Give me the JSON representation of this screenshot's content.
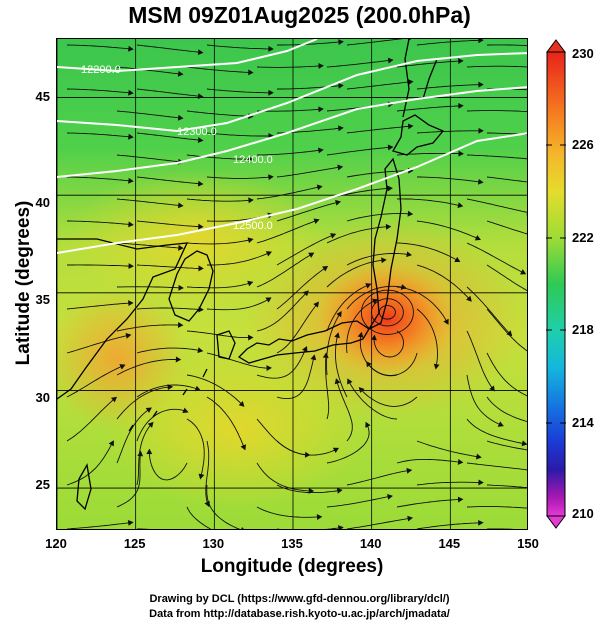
{
  "title": "MSM 09Z01Aug2025 (200.0hPa)",
  "xlabel": "Longitude (degrees)",
  "ylabel": "Latitude  (degrees)",
  "x_ticks": [
    "120",
    "125",
    "130",
    "135",
    "140",
    "145",
    "150"
  ],
  "y_ticks": [
    "45",
    "40",
    "35",
    "30",
    "25"
  ],
  "colorbar": {
    "ticks": [
      "230",
      "226",
      "222",
      "218",
      "214",
      "210"
    ],
    "range": [
      210,
      230
    ]
  },
  "contour_labels": [
    "12200.0",
    "12300.0",
    "12400.0",
    "12500.0"
  ],
  "footer": {
    "line1": "Drawing by DCL (https://www.gfd-dennou.org/library/dcl/)",
    "line2": "Data from http://database.rish.kyoto-u.ac.jp/arch/jmadata/"
  },
  "map": {
    "lon_range": [
      120,
      150
    ],
    "lat_range": [
      22.8,
      48
    ],
    "warm_core": {
      "lon": 141,
      "lat": 34,
      "label": "typhoon-like anticyclonic core"
    }
  }
}
